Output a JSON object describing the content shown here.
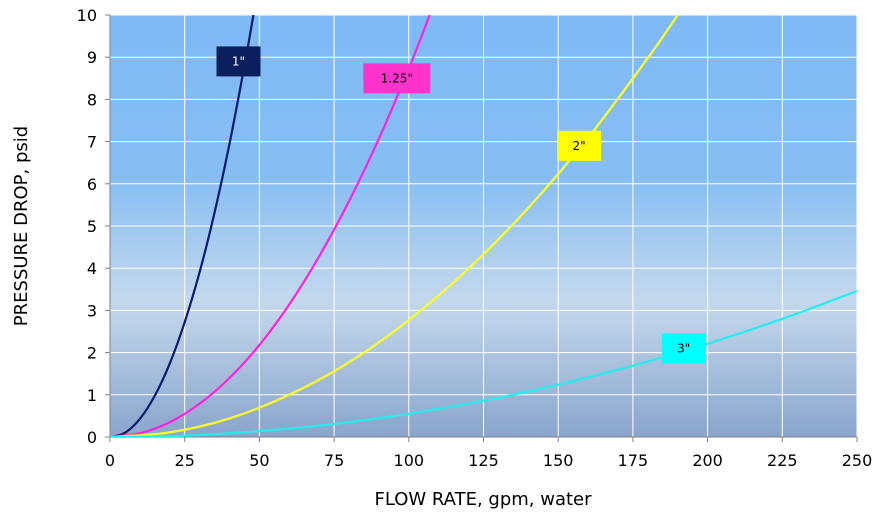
{
  "chart_data": {
    "type": "line",
    "title": "",
    "xlabel": "FLOW RATE, gpm, water",
    "ylabel": "PRESSURE DROP, psid",
    "xlim": [
      0,
      250
    ],
    "ylim": [
      0,
      10
    ],
    "x_ticks": [
      0,
      25,
      50,
      75,
      100,
      125,
      150,
      175,
      200,
      225,
      250
    ],
    "y_ticks": [
      0,
      1,
      2,
      3,
      4,
      5,
      6,
      7,
      8,
      9,
      10
    ],
    "grid": true,
    "legend": "none",
    "background": "gradient sky blue to steel blue",
    "series": [
      {
        "name": "1\"",
        "color": "#0a1a6e",
        "label_bg": "#0b1f5e",
        "label_fg": "#ffffff",
        "label_at": [
          43,
          8.9
        ],
        "x": [
          0,
          5,
          10,
          15,
          20,
          25,
          30,
          35,
          40,
          45,
          48
        ],
        "y": [
          0,
          0.1,
          0.43,
          0.98,
          1.74,
          2.72,
          3.91,
          5.32,
          6.95,
          8.8,
          10
        ]
      },
      {
        "name": "1.25\"",
        "color": "#ff22dd",
        "label_bg": "#ff33cc",
        "label_fg": "#000000",
        "label_at": [
          96,
          8.5
        ],
        "x": [
          0,
          10,
          20,
          30,
          40,
          50,
          60,
          70,
          80,
          90,
          100,
          107
        ],
        "y": [
          0,
          0.09,
          0.35,
          0.79,
          1.4,
          2.18,
          3.14,
          4.28,
          5.59,
          7.07,
          8.73,
          10
        ]
      },
      {
        "name": "2\"",
        "color": "#ffff22",
        "label_bg": "#ffff00",
        "label_fg": "#000000",
        "label_at": [
          157,
          6.9
        ],
        "x": [
          0,
          20,
          40,
          60,
          80,
          100,
          120,
          140,
          160,
          180,
          190
        ],
        "y": [
          0,
          0.11,
          0.44,
          1.0,
          1.77,
          2.77,
          3.99,
          5.43,
          7.09,
          8.98,
          10
        ]
      },
      {
        "name": "3\"",
        "color": "#22eeee",
        "label_bg": "#00ffff",
        "label_fg": "#000000",
        "label_at": [
          192,
          2.1
        ],
        "x": [
          0,
          25,
          50,
          75,
          100,
          125,
          150,
          175,
          200,
          225,
          250
        ],
        "y": [
          0,
          0.03,
          0.14,
          0.31,
          0.55,
          0.86,
          1.24,
          1.69,
          2.21,
          2.8,
          3.46
        ]
      }
    ]
  }
}
